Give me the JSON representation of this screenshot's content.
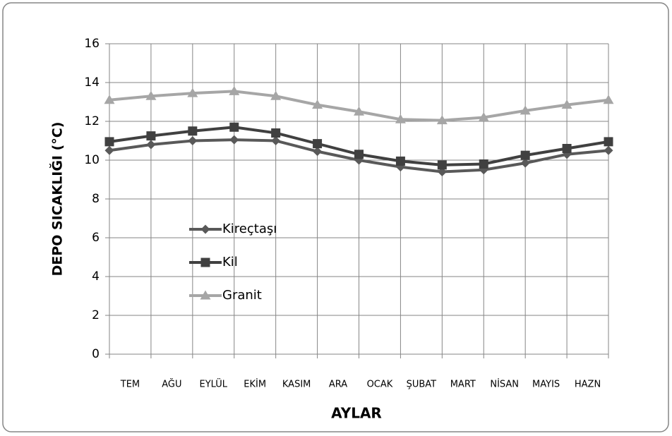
{
  "chart_data": {
    "type": "line",
    "y_label": "DEPO SICAKLIĞI (°C)",
    "x_label": "AYLAR",
    "month_labels": [
      "TEM",
      "AĞU",
      "EYLÜL",
      "EKİM",
      "KASIM",
      "ARA",
      "OCAK",
      "ŞUBAT",
      "MART",
      "NİSAN",
      "MAYIS",
      "HAZN"
    ],
    "x": [
      0,
      1,
      2,
      3,
      4,
      5,
      6,
      7,
      8,
      9,
      10,
      11,
      12
    ],
    "xlim": [
      0,
      12
    ],
    "ylim": [
      0,
      16
    ],
    "yticks": [
      0,
      2,
      4,
      6,
      8,
      10,
      12,
      14,
      16
    ],
    "grid": true,
    "legend": "inside-left",
    "series": [
      {
        "name": "Kireçtaşı",
        "color": "#595959",
        "marker": "diamond",
        "values": [
          10.5,
          10.8,
          11.0,
          11.05,
          11.0,
          10.45,
          10.0,
          9.65,
          9.4,
          9.5,
          9.85,
          10.3,
          10.5
        ]
      },
      {
        "name": "Kil",
        "color": "#404040",
        "marker": "square",
        "values": [
          10.95,
          11.25,
          11.5,
          11.7,
          11.4,
          10.85,
          10.3,
          9.95,
          9.75,
          9.8,
          10.25,
          10.6,
          10.95
        ]
      },
      {
        "name": "Granit",
        "color": "#a6a6a6",
        "marker": "triangle",
        "values": [
          13.1,
          13.3,
          13.45,
          13.55,
          13.3,
          12.85,
          12.5,
          12.1,
          12.05,
          12.2,
          12.55,
          12.85,
          13.1
        ]
      }
    ]
  }
}
